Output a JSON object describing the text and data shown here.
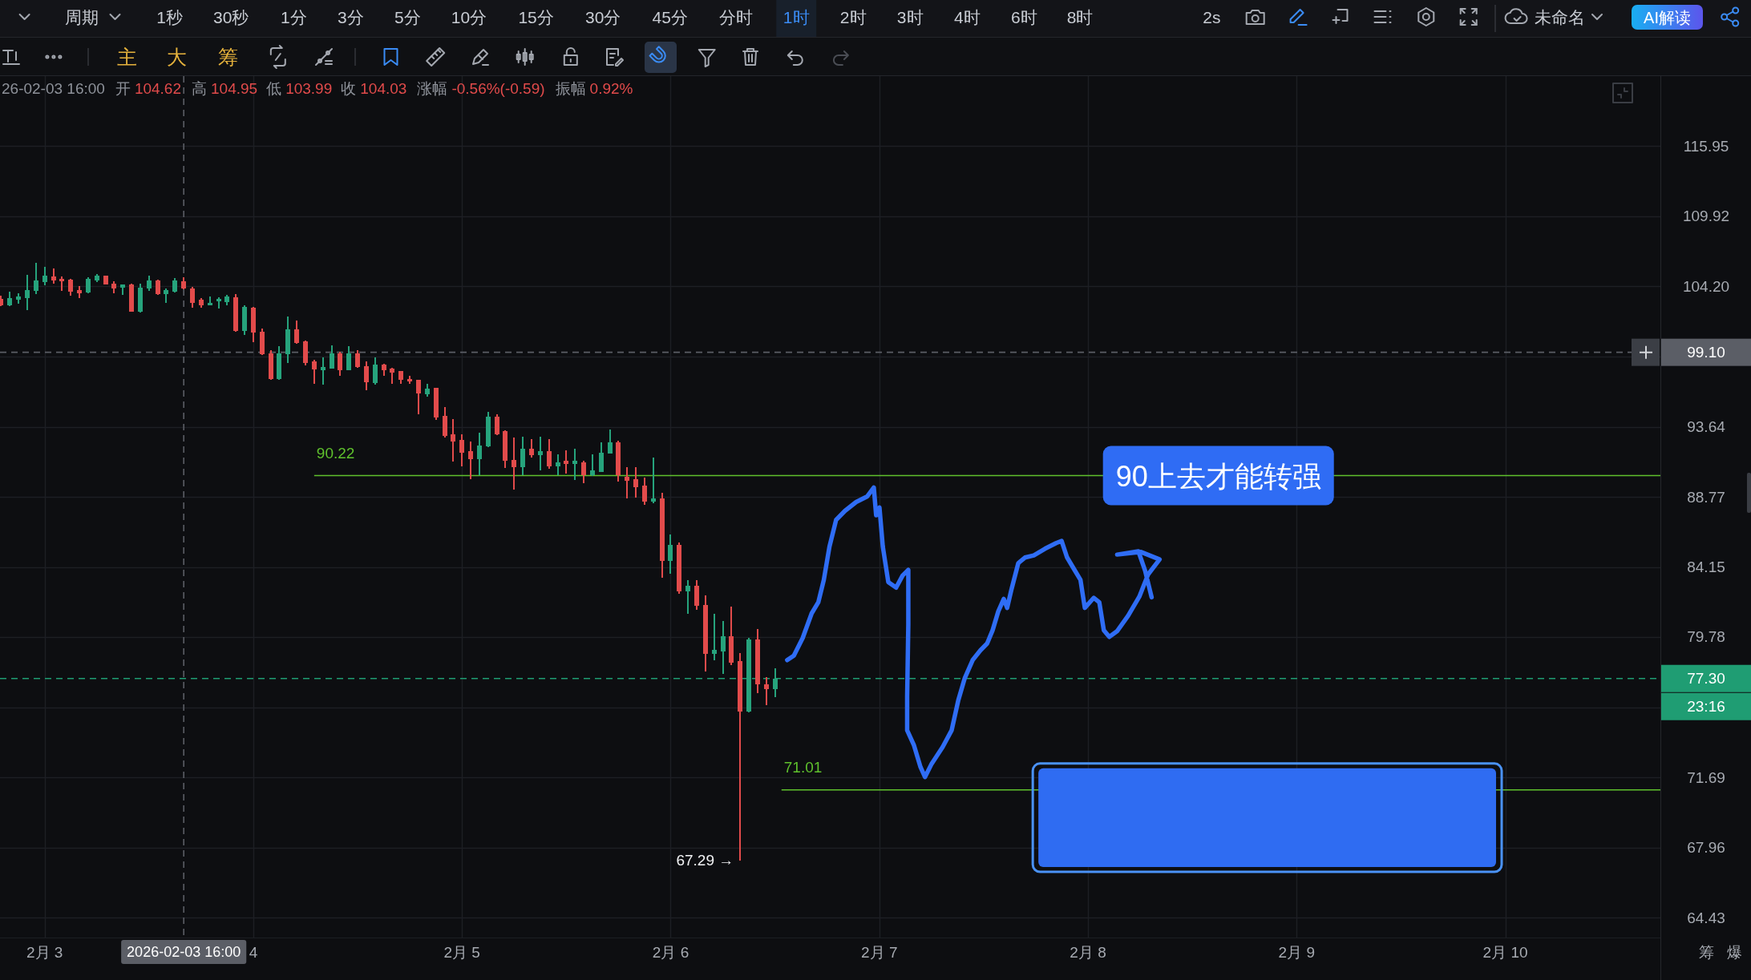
{
  "chart_data": {
    "type": "candlestick",
    "x": [
      "2026-02-02T19:00",
      "2026-02-02T20:00",
      "2026-02-02T21:00",
      "2026-02-02T22:00",
      "2026-02-02T23:00",
      "2026-02-03T00:00",
      "2026-02-03T01:00",
      "2026-02-03T02:00",
      "2026-02-03T03:00",
      "2026-02-03T04:00",
      "2026-02-03T05:00",
      "2026-02-03T06:00",
      "2026-02-03T07:00",
      "2026-02-03T08:00",
      "2026-02-03T09:00",
      "2026-02-03T10:00",
      "2026-02-03T11:00",
      "2026-02-03T12:00",
      "2026-02-03T13:00",
      "2026-02-03T14:00",
      "2026-02-03T15:00",
      "2026-02-03T16:00",
      "2026-02-03T17:00",
      "2026-02-03T18:00",
      "2026-02-03T19:00",
      "2026-02-03T20:00",
      "2026-02-03T21:00",
      "2026-02-03T22:00",
      "2026-02-03T23:00",
      "2026-02-04T00:00",
      "2026-02-04T01:00",
      "2026-02-04T02:00",
      "2026-02-04T03:00",
      "2026-02-04T04:00",
      "2026-02-04T05:00",
      "2026-02-04T06:00",
      "2026-02-04T07:00",
      "2026-02-04T08:00",
      "2026-02-04T09:00",
      "2026-02-04T10:00",
      "2026-02-04T11:00",
      "2026-02-04T12:00",
      "2026-02-04T13:00",
      "2026-02-04T14:00",
      "2026-02-04T15:00",
      "2026-02-04T16:00",
      "2026-02-04T17:00",
      "2026-02-04T18:00",
      "2026-02-04T19:00",
      "2026-02-04T20:00",
      "2026-02-04T21:00",
      "2026-02-04T22:00",
      "2026-02-04T23:00",
      "2026-02-05T00:00",
      "2026-02-05T01:00",
      "2026-02-05T02:00",
      "2026-02-05T03:00",
      "2026-02-05T04:00",
      "2026-02-05T05:00",
      "2026-02-05T06:00",
      "2026-02-05T07:00",
      "2026-02-05T08:00",
      "2026-02-05T09:00",
      "2026-02-05T10:00",
      "2026-02-05T11:00",
      "2026-02-05T12:00",
      "2026-02-05T13:00",
      "2026-02-05T14:00",
      "2026-02-05T15:00",
      "2026-02-05T16:00",
      "2026-02-05T17:00",
      "2026-02-05T18:00",
      "2026-02-05T19:00",
      "2026-02-05T20:00",
      "2026-02-05T21:00",
      "2026-02-05T22:00",
      "2026-02-05T23:00",
      "2026-02-06T00:00",
      "2026-02-06T01:00",
      "2026-02-06T02:00",
      "2026-02-06T03:00",
      "2026-02-06T04:00",
      "2026-02-06T05:00",
      "2026-02-06T06:00",
      "2026-02-06T07:00",
      "2026-02-06T08:00",
      "2026-02-06T09:00",
      "2026-02-06T10:00",
      "2026-02-06T11:00",
      "2026-02-06T12:00"
    ],
    "ohlc": [
      [
        103.23,
        103.44,
        102.65,
        102.71
      ],
      [
        102.71,
        103.76,
        102.67,
        103.3
      ],
      [
        103.17,
        103.65,
        102.81,
        103.38
      ],
      [
        103.27,
        105.13,
        102.35,
        103.9
      ],
      [
        103.82,
        106.09,
        103.59,
        104.67
      ],
      [
        104.56,
        105.74,
        104.28,
        105.03
      ],
      [
        104.99,
        105.61,
        104.43,
        104.67
      ],
      [
        104.77,
        104.99,
        103.86,
        104.6
      ],
      [
        104.71,
        104.8,
        103.44,
        103.8
      ],
      [
        103.93,
        104.24,
        103.27,
        103.65
      ],
      [
        103.69,
        104.92,
        103.65,
        104.82
      ],
      [
        104.67,
        105.18,
        104.54,
        105.03
      ],
      [
        105.03,
        105.08,
        104.33,
        104.35
      ],
      [
        104.45,
        104.6,
        103.65,
        104.03
      ],
      [
        104.07,
        104.37,
        103.51,
        104.33
      ],
      [
        104.35,
        104.39,
        102.22,
        102.24
      ],
      [
        102.22,
        104.39,
        102.12,
        104.12
      ],
      [
        104.03,
        105.09,
        103.82,
        104.67
      ],
      [
        104.67,
        104.71,
        103.55,
        103.59
      ],
      [
        103.59,
        104.03,
        102.92,
        103.9
      ],
      [
        103.76,
        104.88,
        103.72,
        104.67
      ],
      [
        104.62,
        104.95,
        103.99,
        104.03
      ],
      [
        104.03,
        104.18,
        102.5,
        102.92
      ],
      [
        103.13,
        103.3,
        102.5,
        102.71
      ],
      [
        102.74,
        103.4,
        102.71,
        102.88
      ],
      [
        103.01,
        103.34,
        102.46,
        103.23
      ],
      [
        102.97,
        103.55,
        102.71,
        103.4
      ],
      [
        103.34,
        103.59,
        100.69,
        100.73
      ],
      [
        100.73,
        102.74,
        100.4,
        102.59
      ],
      [
        102.55,
        102.59,
        99.88,
        100.63
      ],
      [
        100.69,
        100.9,
        98.91,
        98.95
      ],
      [
        99.0,
        99.28,
        97.05,
        97.1
      ],
      [
        97.1,
        99.59,
        97.07,
        99.0
      ],
      [
        98.95,
        101.85,
        98.27,
        100.87
      ],
      [
        100.87,
        101.52,
        99.73,
        99.83
      ],
      [
        99.93,
        99.97,
        98.11,
        98.27
      ],
      [
        98.41,
        98.55,
        96.72,
        97.81
      ],
      [
        97.77,
        98.71,
        96.68,
        98.01
      ],
      [
        97.87,
        99.61,
        97.85,
        99.04
      ],
      [
        99.04,
        99.14,
        97.36,
        97.75
      ],
      [
        97.77,
        99.57,
        97.75,
        99.0
      ],
      [
        99.04,
        99.26,
        97.95,
        97.97
      ],
      [
        98.07,
        98.41,
        96.3,
        96.84
      ],
      [
        96.8,
        98.71,
        96.7,
        98.17
      ],
      [
        98.17,
        98.21,
        97.32,
        97.77
      ],
      [
        97.87,
        97.91,
        96.74,
        97.55
      ],
      [
        97.67,
        97.71,
        96.74,
        97.06
      ],
      [
        97.12,
        97.32,
        96.74,
        96.92
      ],
      [
        97.02,
        97.06,
        94.54,
        96.04
      ],
      [
        96.0,
        96.74,
        95.79,
        96.39
      ],
      [
        96.43,
        96.47,
        94.13,
        94.28
      ],
      [
        94.41,
        95.04,
        92.9,
        92.99
      ],
      [
        93.08,
        94.18,
        91.21,
        92.61
      ],
      [
        92.7,
        93.08,
        90.88,
        91.82
      ],
      [
        91.91,
        92.57,
        89.98,
        91.35
      ],
      [
        91.35,
        93.23,
        90.25,
        92.29
      ],
      [
        92.23,
        94.7,
        92.19,
        94.37
      ],
      [
        94.37,
        94.54,
        93.02,
        93.08
      ],
      [
        93.3,
        93.4,
        90.75,
        91.24
      ],
      [
        91.3,
        92.89,
        89.28,
        90.78
      ],
      [
        90.78,
        92.93,
        90.23,
        92.1
      ],
      [
        92.1,
        92.74,
        91.45,
        91.63
      ],
      [
        91.63,
        92.93,
        90.56,
        91.91
      ],
      [
        91.91,
        92.74,
        90.71,
        90.84
      ],
      [
        90.87,
        91.71,
        90.23,
        91.11
      ],
      [
        91.23,
        91.95,
        90.34,
        91.04
      ],
      [
        91.04,
        92.1,
        89.92,
        91.23
      ],
      [
        91.15,
        91.24,
        89.68,
        90.23
      ],
      [
        90.23,
        91.67,
        90.2,
        90.56
      ],
      [
        90.47,
        92.51,
        90.47,
        91.82
      ],
      [
        91.73,
        93.46,
        91.73,
        92.51
      ],
      [
        92.51,
        92.64,
        89.79,
        90.23
      ],
      [
        90.14,
        90.8,
        88.65,
        89.88
      ],
      [
        89.98,
        90.8,
        88.71,
        89.41
      ],
      [
        89.52,
        90.07,
        88.24,
        88.44
      ],
      [
        88.47,
        91.49,
        88.33,
        88.65
      ],
      [
        88.65,
        89.05,
        83.44,
        84.52
      ],
      [
        84.52,
        86.25,
        83.7,
        85.59
      ],
      [
        85.59,
        85.73,
        82.45,
        82.62
      ],
      [
        82.62,
        83.33,
        81.21,
        82.96
      ],
      [
        82.96,
        83.33,
        81.44,
        81.69
      ],
      [
        81.74,
        82.35,
        77.73,
        78.75
      ],
      [
        78.75,
        81.21,
        78.36,
        79.01
      ],
      [
        78.93,
        80.75,
        77.58,
        79.85
      ],
      [
        79.85,
        81.65,
        78.08,
        78.24
      ],
      [
        78.32,
        78.8,
        67.29,
        75.4
      ],
      [
        75.4,
        79.74,
        75.35,
        79.61
      ],
      [
        79.61,
        80.28,
        76.43,
        76.94
      ],
      [
        76.98,
        77.4,
        75.74,
        76.7
      ],
      [
        76.7,
        77.88,
        76.23,
        77.3
      ]
    ],
    "colors": [
      "#e24b4b",
      "#26a37c",
      "#26a37c",
      "#26a37c",
      "#26a37c",
      "#26a37c",
      "#e24b4b",
      "#e24b4b",
      "#e24b4b",
      "#e24b4b",
      "#26a37c",
      "#26a37c",
      "#e24b4b",
      "#e24b4b",
      "#26a37c",
      "#e24b4b",
      "#26a37c",
      "#26a37c",
      "#e24b4b",
      "#26a37c",
      "#26a37c",
      "#e24b4b",
      "#e24b4b",
      "#e24b4b",
      "#26a37c",
      "#26a37c",
      "#26a37c",
      "#e24b4b",
      "#26a37c",
      "#e24b4b",
      "#e24b4b",
      "#e24b4b",
      "#26a37c",
      "#26a37c",
      "#e24b4b",
      "#e24b4b",
      "#e24b4b",
      "#26a37c",
      "#26a37c",
      "#e24b4b",
      "#26a37c",
      "#e24b4b",
      "#e24b4b",
      "#26a37c",
      "#e24b4b",
      "#e24b4b",
      "#e24b4b",
      "#e24b4b",
      "#e24b4b",
      "#26a37c",
      "#e24b4b",
      "#e24b4b",
      "#e24b4b",
      "#e24b4b",
      "#e24b4b",
      "#26a37c",
      "#26a37c",
      "#e24b4b",
      "#e24b4b",
      "#e24b4b",
      "#26a37c",
      "#e24b4b",
      "#26a37c",
      "#e24b4b",
      "#26a37c",
      "#e24b4b",
      "#26a37c",
      "#e24b4b",
      "#26a37c",
      "#26a37c",
      "#26a37c",
      "#e24b4b",
      "#e24b4b",
      "#e24b4b",
      "#e24b4b",
      "#26a37c",
      "#e24b4b",
      "#26a37c",
      "#e24b4b",
      "#26a37c",
      "#e24b4b",
      "#e24b4b",
      "#26a37c",
      "#26a37c",
      "#e24b4b",
      "#e24b4b",
      "#26a37c",
      "#e24b4b",
      "#e24b4b",
      "#26a37c"
    ],
    "series": [
      {
        "type": "line",
        "color": "#2f6df5",
        "x": [
          "2026-02-06T13:24",
          "2026-02-06T14:10",
          "2026-02-06T15:11",
          "2026-02-06T16:13",
          "2026-02-06T16:59",
          "2026-02-06T17:37",
          "2026-02-06T18:16",
          "2026-02-06T19:02",
          "2026-02-06T20:03",
          "2026-02-06T21:20",
          "2026-02-06T22:37",
          "2026-02-06T23:22",
          "2026-02-06T23:38",
          "2026-02-07T00:01",
          "2026-02-07T00:24",
          "2026-02-07T01:02",
          "2026-02-07T01:56",
          "2026-02-07T02:41",
          "2026-02-07T03:20",
          "2026-02-07T03:20",
          "2026-02-07T03:12",
          "2026-02-07T03:12",
          "2026-02-07T03:58",
          "2026-02-07T04:44",
          "2026-02-07T05:15",
          "2026-02-07T06:01",
          "2026-02-07T07:17",
          "2026-02-07T08:19",
          "2026-02-07T09:05",
          "2026-02-07T09:50",
          "2026-02-07T10:44",
          "2026-02-07T11:38",
          "2026-02-07T12:24",
          "2026-02-07T13:02",
          "2026-02-07T13:41",
          "2026-02-07T14:19",
          "2026-02-07T14:42",
          "2026-02-07T15:13",
          "2026-02-07T15:59",
          "2026-02-07T16:45",
          "2026-02-07T17:46",
          "2026-02-07T19:03",
          "2026-02-07T20:20",
          "2026-02-07T20:58",
          "2026-02-07T21:36",
          "2026-02-07T22:22",
          "2026-02-07T23:08",
          "2026-02-07T23:38",
          "2026-02-08T00:40",
          "2026-02-08T01:18",
          "2026-02-08T01:49",
          "2026-02-08T02:27",
          "2026-02-08T03:20",
          "2026-02-08T04:37",
          "2026-02-08T05:54",
          "2026-02-08T06:55",
          "2026-02-08T08:14",
          "2026-02-08T06:06",
          "2026-02-08T03:21",
          "2026-02-08T05:48",
          "2026-02-08T06:34",
          "2026-02-08T07:19"
        ],
        "values": [
          78.39,
          78.66,
          79.72,
          81.23,
          81.92,
          83.33,
          85.47,
          87.23,
          87.83,
          88.42,
          88.8,
          89.4,
          87.53,
          88.05,
          85.47,
          83.19,
          82.84,
          83.61,
          83.97,
          80.54,
          76.23,
          74.31,
          73.49,
          72.26,
          71.71,
          72.44,
          73.37,
          74.31,
          76.03,
          77.33,
          78.39,
          78.98,
          79.39,
          80.2,
          81.36,
          82.13,
          81.57,
          82.77,
          84.4,
          84.76,
          84.9,
          85.33,
          85.7,
          85.84,
          84.76,
          84.04,
          83.33,
          81.57,
          82.2,
          81.92,
          80.2,
          79.79,
          80.13,
          81.09,
          82.27,
          83.68,
          84.64,
          85.12,
          84.95,
          85.16,
          83.92,
          82.23
        ]
      }
    ],
    "xlim": [
      "2026-02-02T18:52",
      "2026-02-10T17:50"
    ],
    "ylim": [
      63.46,
      122.3
    ],
    "log": "y",
    "xticks": [
      {
        "value": "2026-02-03",
        "label": "2月 3"
      },
      {
        "value": "2026-02-04",
        "label": "4"
      },
      {
        "value": "2026-02-05",
        "label": "2月 5"
      },
      {
        "value": "2026-02-06",
        "label": "2月 6"
      },
      {
        "value": "2026-02-07",
        "label": "2月 7"
      },
      {
        "value": "2026-02-08",
        "label": "2月 8"
      },
      {
        "value": "2026-02-09",
        "label": "2月 9"
      },
      {
        "value": "2026-02-10",
        "label": "2月 10"
      }
    ],
    "yticks": [
      64.43,
      67.96,
      71.69,
      {
        "value": 75.63,
        "label": null
      },
      79.78,
      84.15,
      88.77,
      93.64,
      {
        "value": 98.78,
        "label": null
      },
      {
        "value": 104.2,
        "label": "104.20"
      },
      109.92,
      115.95
    ],
    "grid": true,
    "ref_lines": [
      {
        "axis": "x",
        "value": "2026-02-03T16:00",
        "label": "2026-02-03 16:00",
        "color": "#5b5e66",
        "line_style": "dashed"
      },
      {
        "axis": "y",
        "value": 99.1,
        "label": "99.10",
        "color": "#5b5e66",
        "line_style": "dashed"
      },
      {
        "axis": "y",
        "value": 90.22,
        "color": "#5fc12d"
      },
      {
        "axis": "y",
        "value": 71.01,
        "color": "#5fc12d"
      },
      {
        "axis": "y",
        "value": 77.3,
        "label": "77.30",
        "color": "#1f9d73",
        "line_style": "dashed"
      }
    ],
    "annotations": [
      "周期",
      "1秒",
      "30秒",
      "1分",
      "3分",
      "5分",
      "10分",
      "15分",
      "30分",
      "45分",
      "分时",
      "1时",
      "2时",
      "3时",
      "4时",
      "6时",
      "8时",
      "2s",
      "未命名",
      "AI解读",
      "主",
      "大",
      "筹",
      "26-02-03 16:00",
      "开",
      "104.62",
      "高",
      "104.95",
      "低",
      "103.99",
      "收",
      "104.03",
      "涨幅",
      "-0.56%(-0.59)",
      "振幅",
      "0.92%",
      "23:16",
      "筹",
      "爆",
      {
        "text": "90.22",
        "x": "2026-02-04T07:00",
        "y": 90.22
      },
      {
        "text": "71.01",
        "x": "2026-02-06T12:45",
        "y": 71.01
      },
      {
        "text": "90上去才能转强",
        "x": "2026-02-08T15:00",
        "y": 90.22
      },
      {
        "text": "67.29 →",
        "x": "2026-02-06T08:00",
        "y": 67.29
      }
    ]
  }
}
